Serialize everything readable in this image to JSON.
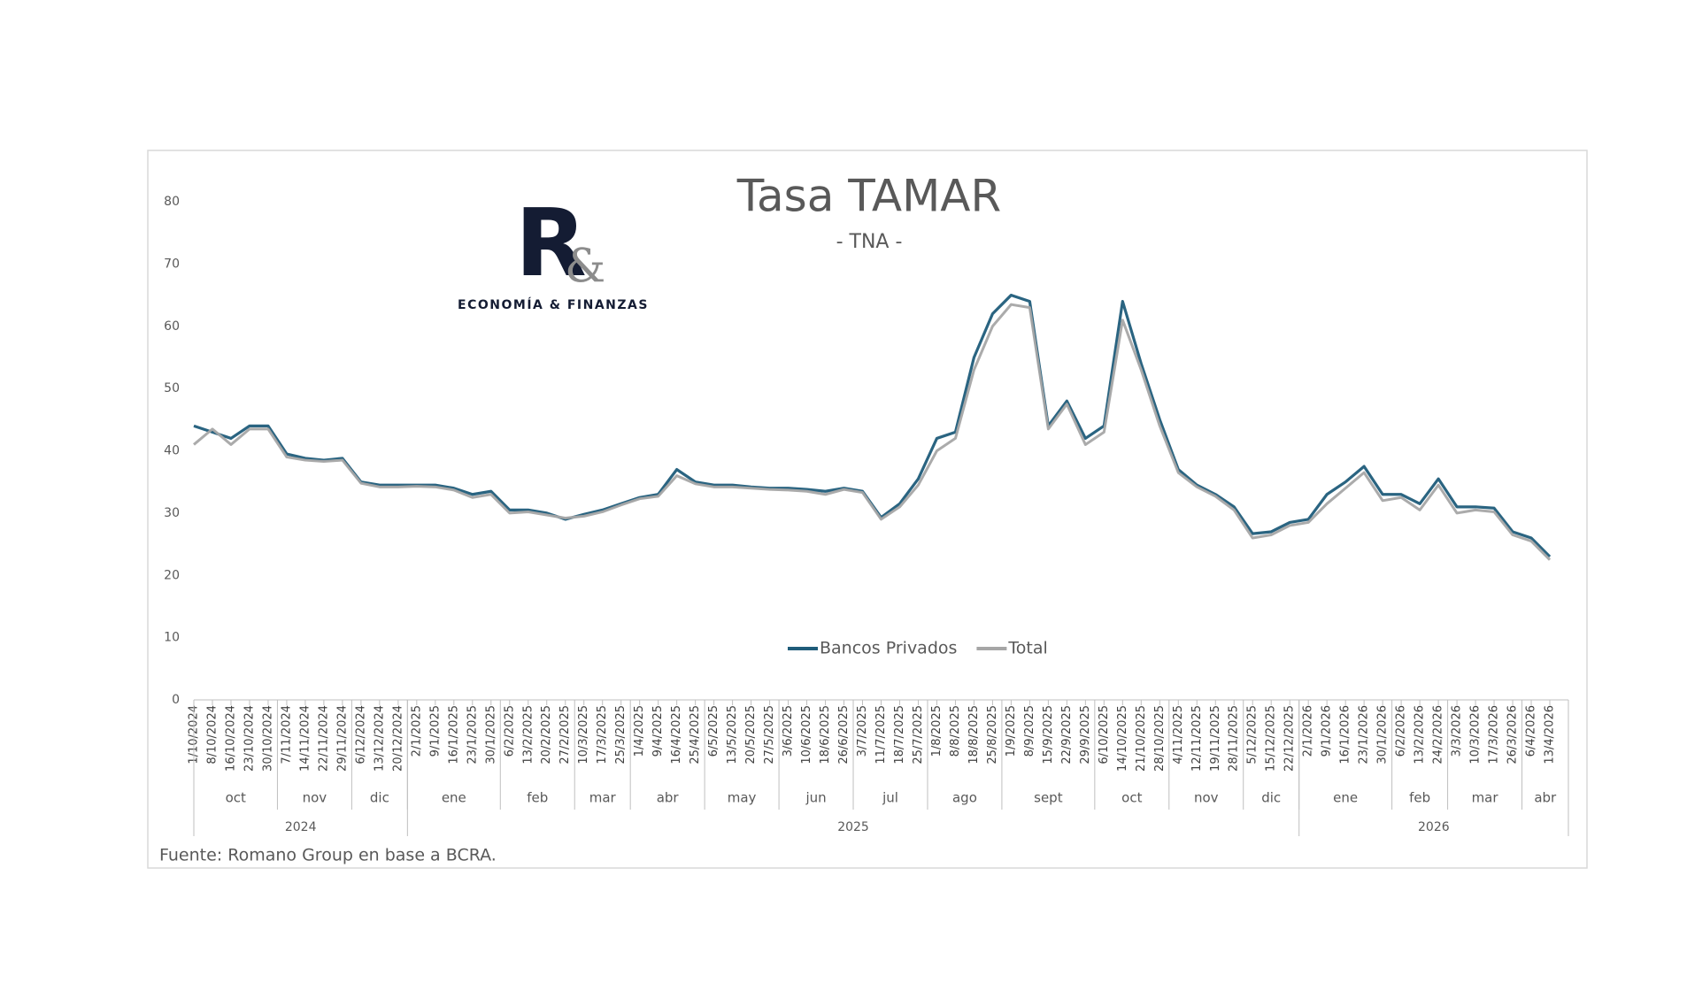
{
  "chart_data": {
    "type": "line",
    "title": "Tasa TAMAR",
    "subtitle": "- TNA -",
    "source": "Fuente: Romano Group en base a BCRA.",
    "logo": {
      "letter": "R",
      "amp": "&",
      "tagline": "ECONOMÍA & FINANZAS"
    },
    "categories": [
      "1/10/2024",
      "8/10/2024",
      "16/10/2024",
      "23/10/2024",
      "30/10/2024",
      "7/11/2024",
      "14/11/2024",
      "22/11/2024",
      "29/11/2024",
      "6/12/2024",
      "13/12/2024",
      "20/12/2024",
      "2/1/2025",
      "9/1/2025",
      "16/1/2025",
      "23/1/2025",
      "30/1/2025",
      "6/2/2025",
      "13/2/2025",
      "20/2/2025",
      "27/2/2025",
      "10/3/2025",
      "17/3/2025",
      "25/3/2025",
      "1/4/2025",
      "9/4/2025",
      "16/4/2025",
      "25/4/2025",
      "6/5/2025",
      "13/5/2025",
      "20/5/2025",
      "27/5/2025",
      "3/6/2025",
      "10/6/2025",
      "18/6/2025",
      "26/6/2025",
      "3/7/2025",
      "11/7/2025",
      "18/7/2025",
      "25/7/2025",
      "1/8/2025",
      "8/8/2025",
      "18/8/2025",
      "25/8/2025",
      "1/9/2025",
      "8/9/2025",
      "15/9/2025",
      "22/9/2025",
      "29/9/2025",
      "6/10/2025",
      "14/10/2025",
      "21/10/2025",
      "28/10/2025",
      "4/11/2025",
      "12/11/2025",
      "19/11/2025",
      "28/11/2025",
      "5/12/2025",
      "15/12/2025",
      "22/12/2025",
      "2/1/2026",
      "9/1/2026",
      "16/1/2026",
      "23/1/2026",
      "30/1/2026",
      "6/2/2026",
      "13/2/2026",
      "24/2/2026",
      "3/3/2026",
      "10/3/2026",
      "17/3/2026",
      "26/3/2026",
      "6/4/2026",
      "13/4/2026"
    ],
    "months": [
      "oct",
      "nov",
      "dic",
      "ene",
      "feb",
      "mar",
      "abr",
      "may",
      "jun",
      "jul",
      "ago",
      "sept",
      "oct",
      "nov",
      "dic",
      "ene",
      "feb",
      "mar",
      "abr"
    ],
    "years": [
      "2024",
      "2025",
      "2026"
    ],
    "series": [
      {
        "name": "Bancos Privados",
        "color": "#1f5c7a",
        "values": [
          44,
          43,
          42,
          44,
          44,
          39.5,
          38.8,
          38.5,
          38.8,
          35,
          34.5,
          34.5,
          34.5,
          34.5,
          34,
          33,
          33.5,
          30.5,
          30.5,
          30,
          29,
          29.8,
          30.5,
          31.5,
          32.5,
          33,
          37,
          35,
          34.5,
          34.5,
          34.2,
          34,
          34,
          33.8,
          33.5,
          34,
          33.5,
          29.3,
          31.5,
          35.5,
          42,
          43,
          55,
          62,
          65,
          64,
          44,
          48,
          42,
          44,
          64,
          54,
          45,
          37,
          34.5,
          33,
          31,
          26.7,
          27,
          28.5,
          29,
          33,
          35,
          37.5,
          33,
          33,
          31.5,
          35.5,
          31,
          31,
          30.8,
          27,
          26,
          23
        ]
      },
      {
        "name": "Total",
        "color": "#a6a6a6",
        "values": [
          41,
          43.5,
          41,
          43.5,
          43.5,
          39,
          38.5,
          38.3,
          38.5,
          34.8,
          34.2,
          34.2,
          34.3,
          34.2,
          33.7,
          32.5,
          33,
          30,
          30.2,
          29.7,
          29.2,
          29.5,
          30.2,
          31.3,
          32.3,
          32.7,
          36,
          34.7,
          34.2,
          34.2,
          34,
          33.8,
          33.7,
          33.5,
          33,
          33.8,
          33.3,
          29,
          31,
          34.5,
          40,
          42,
          53,
          60,
          63.5,
          63,
          43.5,
          47.5,
          41,
          43,
          61,
          53,
          44,
          36.5,
          34.2,
          32.7,
          30.5,
          26,
          26.5,
          28,
          28.5,
          31.5,
          34,
          36.5,
          32,
          32.5,
          30.5,
          34.5,
          30,
          30.5,
          30.2,
          26.5,
          25.5,
          22.5
        ]
      }
    ],
    "ylim": [
      0,
      80
    ],
    "yticks": [
      0,
      10,
      20,
      30,
      40,
      50,
      60,
      70,
      80
    ],
    "grid": false,
    "legend": "bottom"
  }
}
